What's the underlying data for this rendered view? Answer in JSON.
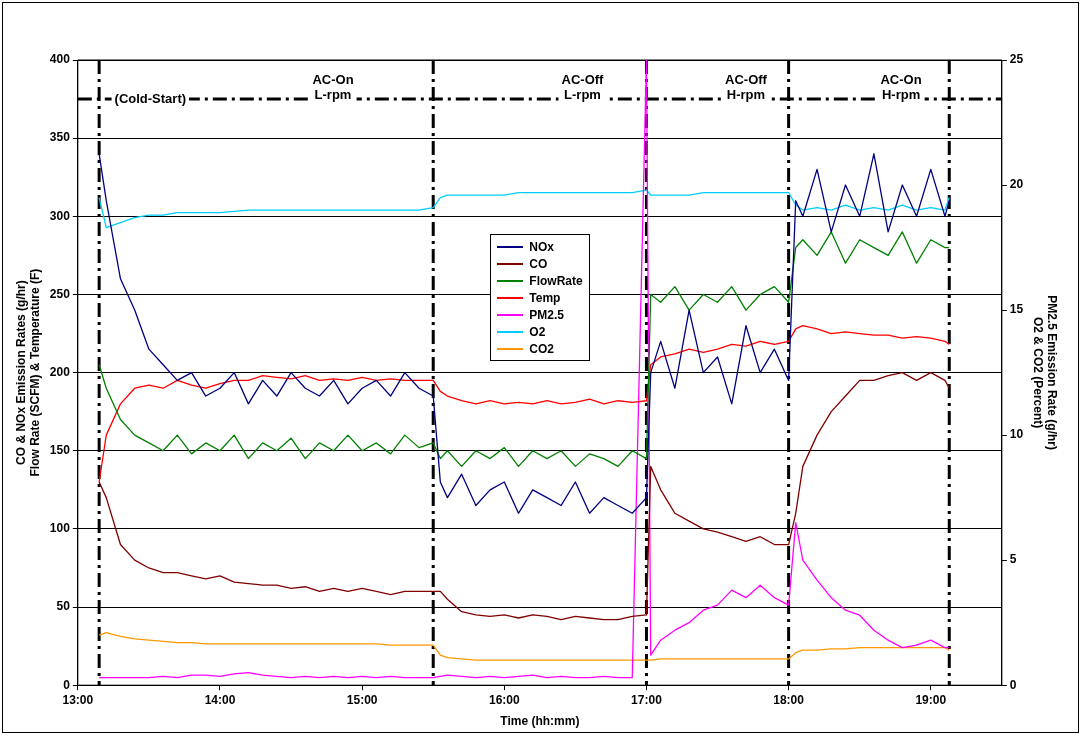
{
  "chart_data": {
    "type": "line",
    "xlabel": "Time (hh:mm)",
    "ylabel": "CO & NOx Emission Rates (g/hr)\nFlow Rate (SCFM) & Temperature (F)",
    "y2label": "PM2.5 Emission Rate (g/hr)\nO2 & CO2 (Percent)",
    "x": [
      13.15,
      13.2,
      13.3,
      13.4,
      13.5,
      13.6,
      13.7,
      13.8,
      13.9,
      14.0,
      14.1,
      14.2,
      14.3,
      14.4,
      14.5,
      14.6,
      14.7,
      14.8,
      14.9,
      15.0,
      15.1,
      15.2,
      15.3,
      15.4,
      15.5,
      15.55,
      15.6,
      15.7,
      15.8,
      15.9,
      16.0,
      16.1,
      16.2,
      16.3,
      16.4,
      16.5,
      16.6,
      16.7,
      16.8,
      16.9,
      17.0,
      17.03,
      17.1,
      17.2,
      17.3,
      17.4,
      17.5,
      17.6,
      17.7,
      17.8,
      17.9,
      18.0,
      18.05,
      18.1,
      18.2,
      18.3,
      18.4,
      18.5,
      18.6,
      18.7,
      18.8,
      18.9,
      19.0,
      19.1,
      19.13
    ],
    "series": [
      {
        "name": "NOx",
        "color": "#000080",
        "values": [
          340,
          310,
          260,
          240,
          215,
          205,
          195,
          200,
          185,
          190,
          200,
          180,
          195,
          185,
          200,
          190,
          185,
          195,
          180,
          190,
          195,
          185,
          200,
          190,
          185,
          130,
          120,
          135,
          115,
          125,
          130,
          110,
          125,
          120,
          115,
          130,
          110,
          120,
          115,
          110,
          120,
          200,
          220,
          190,
          240,
          200,
          210,
          180,
          230,
          200,
          215,
          195,
          310,
          300,
          330,
          290,
          320,
          300,
          340,
          290,
          320,
          300,
          330,
          300,
          310
        ]
      },
      {
        "name": "CO",
        "color": "#800000",
        "values": [
          130,
          120,
          90,
          80,
          75,
          72,
          72,
          70,
          68,
          70,
          66,
          65,
          64,
          64,
          62,
          63,
          60,
          62,
          60,
          62,
          60,
          58,
          60,
          60,
          60,
          60,
          55,
          47,
          45,
          44,
          45,
          43,
          45,
          44,
          42,
          44,
          43,
          42,
          42,
          44,
          45,
          140,
          125,
          110,
          105,
          100,
          98,
          95,
          92,
          95,
          90,
          90,
          110,
          140,
          160,
          175,
          185,
          195,
          195,
          198,
          200,
          195,
          200,
          195,
          190
        ]
      },
      {
        "name": "FlowRate",
        "color": "#008000",
        "values": [
          205,
          190,
          170,
          160,
          155,
          150,
          160,
          148,
          155,
          150,
          160,
          145,
          155,
          150,
          158,
          145,
          155,
          150,
          160,
          150,
          155,
          148,
          160,
          152,
          155,
          145,
          150,
          140,
          150,
          145,
          152,
          140,
          150,
          145,
          150,
          140,
          148,
          145,
          140,
          150,
          145,
          250,
          245,
          255,
          240,
          250,
          245,
          255,
          240,
          250,
          255,
          245,
          280,
          285,
          275,
          290,
          270,
          285,
          280,
          275,
          290,
          270,
          285,
          280,
          280
        ]
      },
      {
        "name": "Temp",
        "color": "#ff0000",
        "values": [
          130,
          160,
          180,
          190,
          192,
          190,
          195,
          192,
          190,
          193,
          195,
          195,
          198,
          197,
          196,
          198,
          195,
          196,
          195,
          197,
          195,
          196,
          195,
          195,
          195,
          188,
          185,
          182,
          180,
          182,
          180,
          181,
          180,
          182,
          180,
          181,
          183,
          180,
          182,
          181,
          182,
          205,
          210,
          212,
          215,
          213,
          215,
          218,
          217,
          220,
          218,
          220,
          228,
          230,
          228,
          225,
          226,
          225,
          224,
          224,
          222,
          223,
          222,
          220,
          218
        ]
      },
      {
        "name": "PM2.5",
        "color": "#ff00ff",
        "axis": "y2",
        "values": [
          0.3,
          0.3,
          0.3,
          0.3,
          0.3,
          0.35,
          0.3,
          0.4,
          0.4,
          0.35,
          0.45,
          0.5,
          0.4,
          0.35,
          0.3,
          0.35,
          0.3,
          0.35,
          0.3,
          0.35,
          0.3,
          0.35,
          0.3,
          0.3,
          0.3,
          0.35,
          0.4,
          0.35,
          0.3,
          0.35,
          0.3,
          0.35,
          0.4,
          0.3,
          0.35,
          0.3,
          0.3,
          0.35,
          0.3,
          0.3,
          25,
          1.2,
          1.8,
          2.2,
          2.5,
          3,
          3.2,
          3.8,
          3.5,
          4,
          3.5,
          3.2,
          6.5,
          5,
          4.2,
          3.5,
          3,
          2.8,
          2.2,
          1.8,
          1.5,
          1.6,
          1.8,
          1.5,
          1.5
        ]
      },
      {
        "name": "O2",
        "color": "#00ccff",
        "axis": "y2",
        "values": [
          19.5,
          18.3,
          18.5,
          18.7,
          18.8,
          18.8,
          18.9,
          18.9,
          18.9,
          18.9,
          18.95,
          19,
          19,
          19,
          19,
          19,
          19,
          19,
          19,
          19,
          19,
          19,
          19,
          19,
          19.1,
          19.5,
          19.6,
          19.6,
          19.6,
          19.6,
          19.6,
          19.7,
          19.7,
          19.7,
          19.7,
          19.7,
          19.7,
          19.7,
          19.7,
          19.7,
          19.8,
          19.6,
          19.6,
          19.6,
          19.6,
          19.7,
          19.7,
          19.7,
          19.7,
          19.7,
          19.7,
          19.7,
          19.2,
          19,
          19.1,
          19,
          19.2,
          19,
          19.1,
          19,
          19.2,
          19,
          19.1,
          19,
          19.5
        ]
      },
      {
        "name": "CO2",
        "color": "#ff9900",
        "axis": "y2",
        "values": [
          2.0,
          2.1,
          1.95,
          1.85,
          1.8,
          1.75,
          1.7,
          1.7,
          1.65,
          1.65,
          1.65,
          1.65,
          1.65,
          1.65,
          1.65,
          1.65,
          1.65,
          1.65,
          1.65,
          1.65,
          1.65,
          1.6,
          1.6,
          1.6,
          1.6,
          1.2,
          1.1,
          1.05,
          1.0,
          1.0,
          1.0,
          1.0,
          1.0,
          1.0,
          1.0,
          1.0,
          1.0,
          1.0,
          1.0,
          1.0,
          1.0,
          1.0,
          1.05,
          1.05,
          1.05,
          1.05,
          1.05,
          1.05,
          1.05,
          1.05,
          1.05,
          1.05,
          1.3,
          1.4,
          1.4,
          1.45,
          1.45,
          1.5,
          1.5,
          1.5,
          1.5,
          1.5,
          1.5,
          1.5,
          1.4
        ]
      }
    ],
    "xlim": [
      13,
      19.5
    ],
    "xticks": [
      {
        "value": 13,
        "label": "13:00"
      },
      {
        "value": 14,
        "label": "14:00"
      },
      {
        "value": 15,
        "label": "15:00"
      },
      {
        "value": 16,
        "label": "16:00"
      },
      {
        "value": 17,
        "label": "17:00"
      },
      {
        "value": 18,
        "label": "18:00"
      },
      {
        "value": 19,
        "label": "19:00"
      }
    ],
    "ylim": [
      0,
      400
    ],
    "yticks": [
      0,
      50,
      100,
      150,
      200,
      250,
      300,
      350,
      400
    ],
    "y2lim": [
      0,
      25
    ],
    "y2ticks": [
      0,
      5,
      10,
      15,
      20,
      25
    ],
    "ref_lines": [
      {
        "axis": "x",
        "value": 13.15,
        "line_style": "dashed",
        "color": "#000000"
      },
      {
        "axis": "x",
        "value": 15.5,
        "line_style": "dashed",
        "color": "#000000"
      },
      {
        "axis": "x",
        "value": 17.0,
        "line_style": "dashed",
        "color": "#000000"
      },
      {
        "axis": "x",
        "value": 18.0,
        "line_style": "dashed",
        "color": "#000000"
      },
      {
        "axis": "x",
        "value": 19.13,
        "line_style": "dashed",
        "color": "#000000"
      },
      {
        "axis": "y",
        "value": 375,
        "line_style": "dashed",
        "color": "#000000"
      }
    ],
    "annotations": [
      {
        "text": "(Cold-Start)",
        "x": 13.51,
        "y": 375
      },
      "AC-On\nL-rpm",
      "AC-Off\nL-rpm",
      "AC-Off\nH-rpm",
      "AC-On\nH-rpm"
    ],
    "grid": "y",
    "legend": "center",
    "marker": "none",
    "line_style": "solid"
  }
}
